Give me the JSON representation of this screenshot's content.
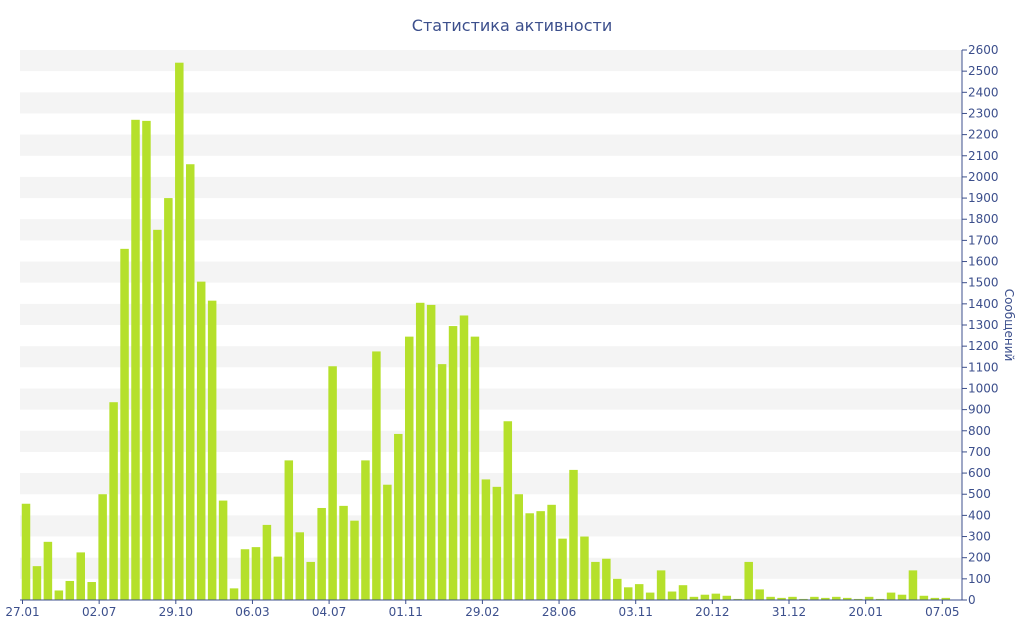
{
  "chart_data": {
    "type": "bar",
    "title": "Статистика активности",
    "ylabel": "Сообщений",
    "xlabel": "",
    "ylim": [
      0,
      2600
    ],
    "y_ticks": [
      0,
      100,
      200,
      300,
      400,
      500,
      600,
      700,
      800,
      900,
      1000,
      1100,
      1200,
      1300,
      1400,
      1500,
      1600,
      1700,
      1800,
      1900,
      2000,
      2100,
      2200,
      2300,
      2400,
      2500,
      2600
    ],
    "y_axis_position": "right",
    "grid": "alternating horizontal bands",
    "x_tick_labels": [
      {
        "label": "27.01",
        "index": 0
      },
      {
        "label": "02.07",
        "index": 7
      },
      {
        "label": "29.10",
        "index": 14
      },
      {
        "label": "06.03",
        "index": 21
      },
      {
        "label": "04.07",
        "index": 28
      },
      {
        "label": "01.11",
        "index": 35
      },
      {
        "label": "29.02",
        "index": 42
      },
      {
        "label": "28.06",
        "index": 49
      },
      {
        "label": "03.11",
        "index": 56
      },
      {
        "label": "20.12",
        "index": 63
      },
      {
        "label": "31.12",
        "index": 70
      },
      {
        "label": "20.01",
        "index": 77
      },
      {
        "label": "07.05",
        "index": 84
      }
    ],
    "series": [
      {
        "color": "#b5e02b",
        "values": [
          455,
          160,
          275,
          45,
          90,
          225,
          85,
          500,
          935,
          1660,
          2270,
          2265,
          1750,
          1900,
          2540,
          2060,
          1505,
          1415,
          470,
          55,
          240,
          250,
          355,
          205,
          660,
          320,
          180,
          435,
          1105,
          445,
          375,
          660,
          1175,
          545,
          785,
          1245,
          1405,
          1395,
          1115,
          1295,
          1345,
          1245,
          570,
          535,
          845,
          500,
          410,
          420,
          450,
          290,
          615,
          300,
          180,
          195,
          100,
          60,
          75,
          35,
          140,
          40,
          70,
          15,
          25,
          30,
          20,
          5,
          180,
          50,
          15,
          10,
          15,
          5,
          15,
          10,
          15,
          10,
          5,
          15,
          5,
          35,
          25,
          140,
          20,
          10,
          10
        ]
      }
    ]
  }
}
